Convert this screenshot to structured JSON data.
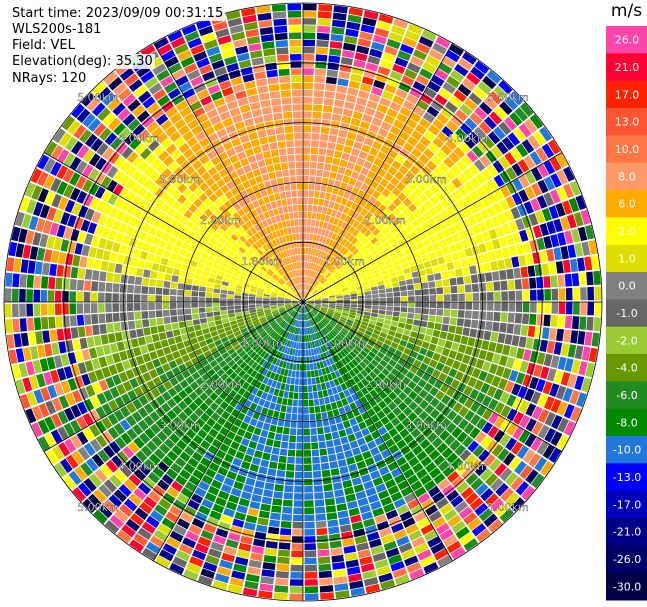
{
  "meta": {
    "start_time": "Start time: 2023/09/09 00:31:15",
    "instrument": "WLS200s-181",
    "field": "Field: VEL",
    "elevation": "Elevation(deg): 35.30",
    "nrays": "NRays: 120"
  },
  "chart_data": {
    "type": "heatmap",
    "projection": "polar PPI",
    "field": "VEL",
    "nrays": 120,
    "range_rings": [
      {
        "label": "1.00km",
        "km": 1
      },
      {
        "label": "2.00km",
        "km": 2
      },
      {
        "label": "3.00km",
        "km": 3
      },
      {
        "label": "4.00km",
        "km": 4
      },
      {
        "label": "5.00km",
        "km": 5
      }
    ],
    "valid_data_range_km": 3.9,
    "pattern": {
      "north_half": "positive velocities (yellow to salmon, ~2 to 10 m/s)",
      "south_half": "negative velocities (olive to green, ~-2 to -8 m/s)",
      "east_west_band": "near zero (gray)",
      "beyond_4km": "noise (random colors)"
    },
    "colorbar": {
      "unit": "m/s",
      "labels": [
        "26.0",
        "21.0",
        "17.0",
        "13.0",
        "10.0",
        "8.0",
        "6.0",
        "2.0",
        "1.0",
        "0.0",
        "-1.0",
        "-2.0",
        "-4.0",
        "-6.0",
        "-8.0",
        "-10.0",
        "-13.0",
        "-17.0",
        "-21.0",
        "-26.0",
        "-30.0"
      ],
      "colors": [
        "#ff44aa",
        "#ff0033",
        "#ff2200",
        "#ff5533",
        "#ff7744",
        "#ff9966",
        "#ffaa00",
        "#ffff00",
        "#dddd00",
        "#808080",
        "#666666",
        "#99cc33",
        "#669900",
        "#228b22",
        "#008800",
        "#2277dd",
        "#0000ff",
        "#0000bb",
        "#000088",
        "#000066",
        "#000044"
      ]
    }
  }
}
